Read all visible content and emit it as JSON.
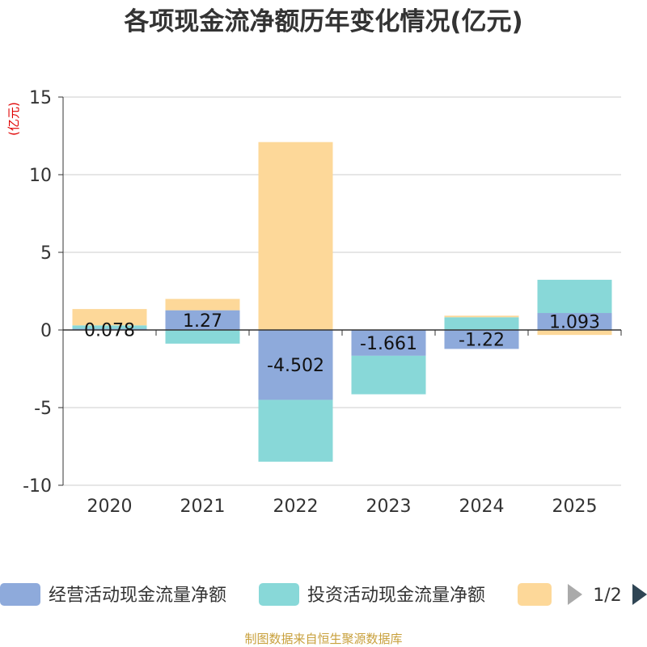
{
  "chart_data": {
    "type": "bar",
    "stacked": true,
    "title": "各项现金流净额历年变化情况(亿元)",
    "unit_label": "(亿元)",
    "categories": [
      "2020",
      "2021",
      "2022",
      "2023",
      "2024",
      "2025"
    ],
    "ylim": [
      -10,
      15
    ],
    "yticks": [
      15,
      10,
      5,
      0,
      -5,
      -10
    ],
    "series": [
      {
        "name": "经营活动现金流量净额",
        "color": "#8eaadb",
        "values": [
          0.078,
          1.27,
          -4.502,
          -1.661,
          -1.22,
          1.093
        ],
        "labels": [
          "0.078",
          "1.27",
          "-4.502",
          "-1.661",
          "-1.22",
          "1.093"
        ]
      },
      {
        "name": "投资活动现金流量净额",
        "color": "#88d8d8",
        "values": [
          0.22,
          -0.88,
          -3.98,
          -2.48,
          0.82,
          2.14
        ]
      },
      {
        "name": "",
        "color": "#fdd899",
        "values": [
          1.05,
          0.73,
          12.1,
          0.0,
          0.1,
          -0.32
        ]
      }
    ],
    "legend": {
      "items": [
        "经营活动现金流量净额",
        "投资活动现金流量净额",
        ""
      ],
      "page": "1/2"
    },
    "source": "制图数据来自恒生聚源数据库"
  }
}
